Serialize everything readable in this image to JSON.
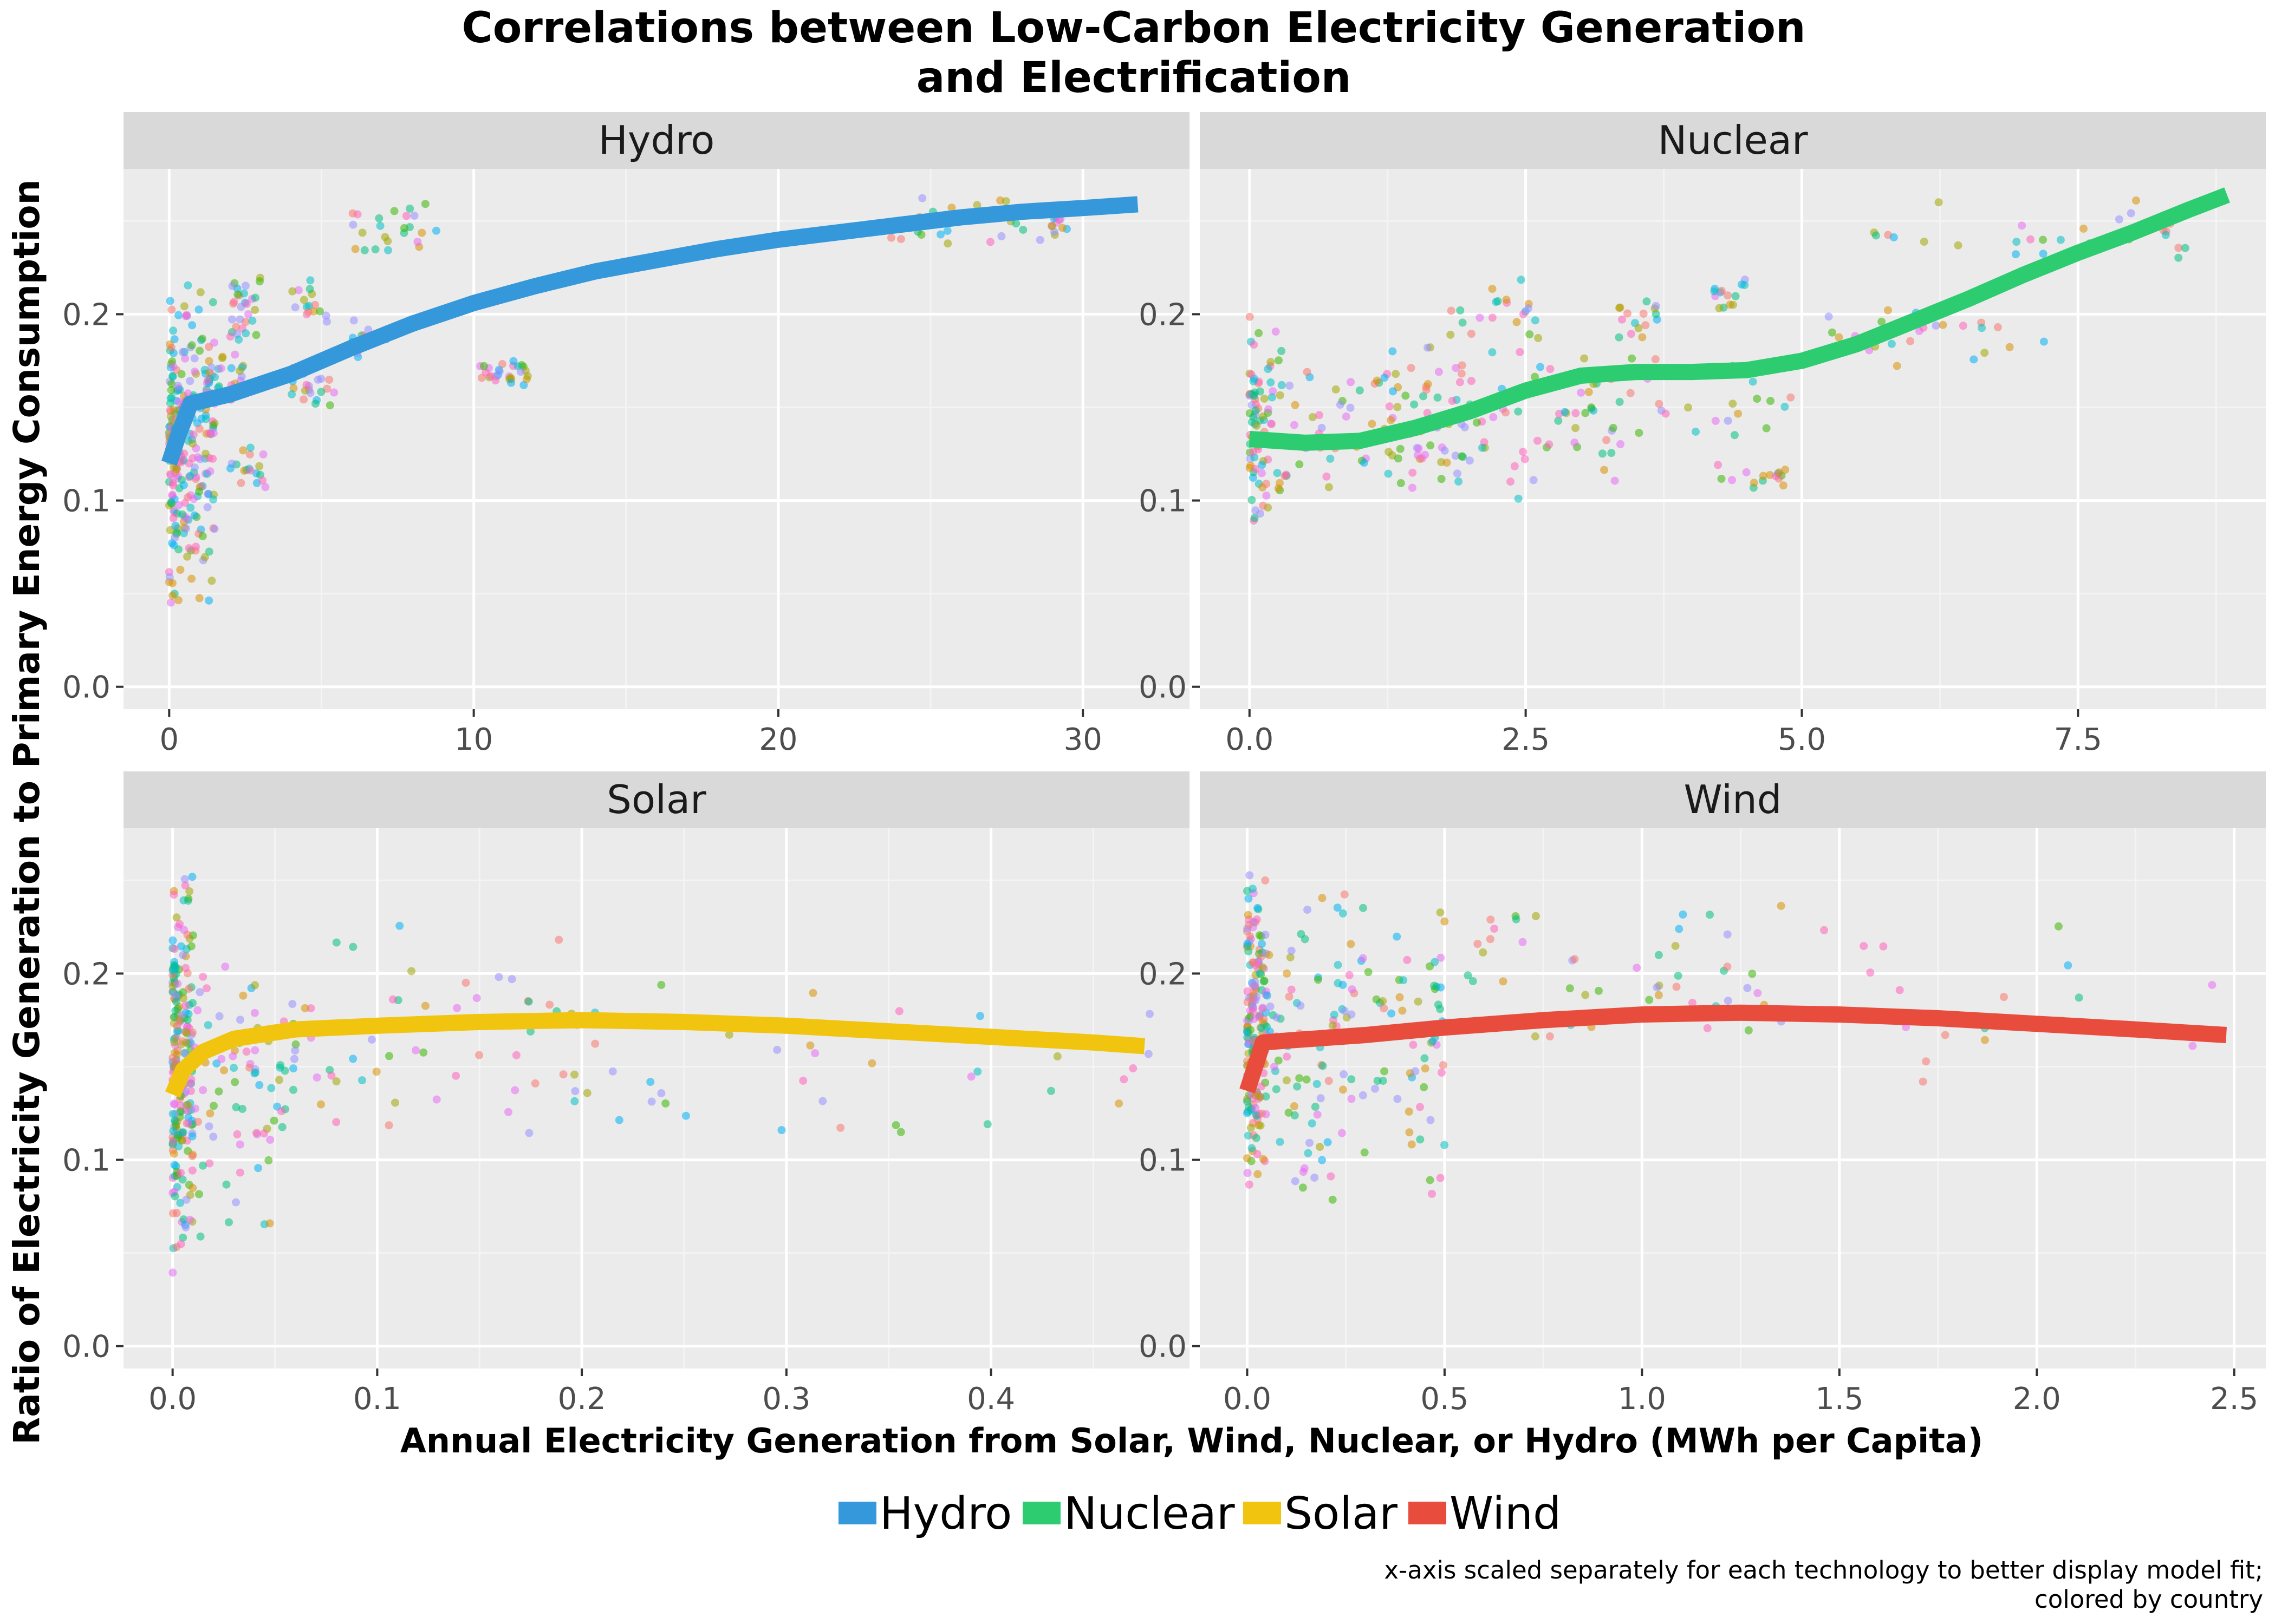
{
  "chart_data": {
    "type": "scatter",
    "title_line1": "Correlations between Low-Carbon Electricity Generation",
    "title_line2": "and Electrification",
    "xlabel": "Annual Electricity Generation from Solar, Wind, Nuclear, or Hydro (MWh per Capita)",
    "ylabel": "Ratio of Electricity Generation to Primary Energy Consumption",
    "caption_line1": "x-axis scaled separately for each technology to better display model fit;",
    "caption_line2": "colored by country",
    "grid": true,
    "legend_position": "bottom",
    "legend": [
      {
        "name": "Hydro",
        "color": "#3498db"
      },
      {
        "name": "Nuclear",
        "color": "#2ecc71"
      },
      {
        "name": "Solar",
        "color": "#f1c40f"
      },
      {
        "name": "Wind",
        "color": "#e74c3c"
      }
    ],
    "point_palette": [
      "#f8766d",
      "#d89000",
      "#a3a500",
      "#39b600",
      "#00bf7d",
      "#00bfc4",
      "#00b0f6",
      "#9590ff",
      "#e76bf3",
      "#ff62bc"
    ],
    "panels": [
      {
        "name": "Hydro",
        "xlim": [
          -1.5,
          33.5
        ],
        "ylim": [
          -0.012,
          0.278
        ],
        "xticks": [
          0,
          10,
          20,
          30
        ],
        "xtick_labels": [
          "0",
          "10",
          "20",
          "30"
        ],
        "yticks": [
          0.0,
          0.1,
          0.2
        ],
        "ytick_labels": [
          "0.0",
          "0.1",
          "0.2"
        ],
        "fit_color": "#3498db",
        "fit": [
          [
            0.0,
            0.12
          ],
          [
            0.3,
            0.135
          ],
          [
            0.7,
            0.152
          ],
          [
            2,
            0.157
          ],
          [
            4,
            0.168
          ],
          [
            6,
            0.182
          ],
          [
            8,
            0.195
          ],
          [
            10,
            0.206
          ],
          [
            12,
            0.215
          ],
          [
            14,
            0.223
          ],
          [
            16,
            0.229
          ],
          [
            18,
            0.235
          ],
          [
            20,
            0.24
          ],
          [
            22,
            0.244
          ],
          [
            24,
            0.248
          ],
          [
            26,
            0.252
          ],
          [
            28,
            0.255
          ],
          [
            30,
            0.257
          ],
          [
            31.8,
            0.259
          ]
        ],
        "clusters": [
          {
            "x": [
              0.0,
              1.5
            ],
            "y": [
              0.04,
              0.22
            ],
            "n": 260
          },
          {
            "x": [
              1.2,
              2.5
            ],
            "y": [
              0.15,
              0.18
            ],
            "n": 35
          },
          {
            "x": [
              2.0,
              3.0
            ],
            "y": [
              0.18,
              0.225
            ],
            "n": 30
          },
          {
            "x": [
              2.0,
              3.2
            ],
            "y": [
              0.1,
              0.13
            ],
            "n": 18
          },
          {
            "x": [
              4.0,
              5.5
            ],
            "y": [
              0.145,
              0.175
            ],
            "n": 20
          },
          {
            "x": [
              4.0,
              5.2
            ],
            "y": [
              0.19,
              0.22
            ],
            "n": 16
          },
          {
            "x": [
              6.0,
              7.2
            ],
            "y": [
              0.175,
              0.198
            ],
            "n": 14
          },
          {
            "x": [
              6.0,
              8.8
            ],
            "y": [
              0.23,
              0.262
            ],
            "n": 24
          },
          {
            "x": [
              10.2,
              11.8
            ],
            "y": [
              0.16,
              0.176
            ],
            "n": 28
          },
          {
            "x": [
              23.0,
              29.5
            ],
            "y": [
              0.235,
              0.265
            ],
            "n": 40
          }
        ]
      },
      {
        "name": "Nuclear",
        "xlim": [
          -0.45,
          9.2
        ],
        "ylim": [
          -0.012,
          0.278
        ],
        "xticks": [
          0.0,
          2.5,
          5.0,
          7.5
        ],
        "xtick_labels": [
          "0.0",
          "2.5",
          "5.0",
          "7.5"
        ],
        "yticks": [
          0.0,
          0.1,
          0.2
        ],
        "ytick_labels": [
          "0.0",
          "0.1",
          "0.2"
        ],
        "fit_color": "#2ecc71",
        "fit": [
          [
            0.0,
            0.133
          ],
          [
            0.5,
            0.131
          ],
          [
            1.0,
            0.132
          ],
          [
            1.5,
            0.139
          ],
          [
            2.0,
            0.148
          ],
          [
            2.5,
            0.159
          ],
          [
            3.0,
            0.167
          ],
          [
            3.5,
            0.169
          ],
          [
            4.0,
            0.169
          ],
          [
            4.5,
            0.17
          ],
          [
            5.0,
            0.175
          ],
          [
            5.5,
            0.184
          ],
          [
            6.0,
            0.196
          ],
          [
            6.5,
            0.208
          ],
          [
            7.0,
            0.221
          ],
          [
            7.5,
            0.233
          ],
          [
            8.0,
            0.244
          ],
          [
            8.5,
            0.256
          ],
          [
            8.85,
            0.264
          ]
        ],
        "clusters": [
          {
            "x": [
              0.0,
              0.3
            ],
            "y": [
              0.078,
              0.2
            ],
            "n": 90
          },
          {
            "x": [
              0.3,
              2.0
            ],
            "y": [
              0.1,
              0.18
            ],
            "n": 70
          },
          {
            "x": [
              1.0,
              3.5
            ],
            "y": [
              0.1,
              0.19
            ],
            "n": 90
          },
          {
            "x": [
              1.8,
              2.6
            ],
            "y": [
              0.18,
              0.23
            ],
            "n": 20
          },
          {
            "x": [
              3.3,
              3.9
            ],
            "y": [
              0.185,
              0.22
            ],
            "n": 16
          },
          {
            "x": [
              4.2,
              4.5
            ],
            "y": [
              0.2,
              0.222
            ],
            "n": 14
          },
          {
            "x": [
              4.2,
              4.9
            ],
            "y": [
              0.105,
              0.12
            ],
            "n": 16
          },
          {
            "x": [
              3.0,
              5.0
            ],
            "y": [
              0.13,
              0.18
            ],
            "n": 25
          },
          {
            "x": [
              5.2,
              7.2
            ],
            "y": [
              0.17,
              0.21
            ],
            "n": 28
          },
          {
            "x": [
              5.6,
              8.6
            ],
            "y": [
              0.22,
              0.262
            ],
            "n": 28
          }
        ]
      },
      {
        "name": "Solar",
        "xlim": [
          -0.024,
          0.497
        ],
        "ylim": [
          -0.012,
          0.278
        ],
        "xticks": [
          0.0,
          0.1,
          0.2,
          0.3,
          0.4
        ],
        "xtick_labels": [
          "0.0",
          "0.1",
          "0.2",
          "0.3",
          "0.4"
        ],
        "yticks": [
          0.0,
          0.1,
          0.2
        ],
        "ytick_labels": [
          "0.0",
          "0.1",
          "0.2"
        ],
        "fit_color": "#f1c40f",
        "fit": [
          [
            0.0,
            0.135
          ],
          [
            0.005,
            0.148
          ],
          [
            0.015,
            0.158
          ],
          [
            0.03,
            0.165
          ],
          [
            0.06,
            0.17
          ],
          [
            0.1,
            0.172
          ],
          [
            0.15,
            0.174
          ],
          [
            0.2,
            0.175
          ],
          [
            0.25,
            0.174
          ],
          [
            0.3,
            0.172
          ],
          [
            0.35,
            0.169
          ],
          [
            0.4,
            0.166
          ],
          [
            0.45,
            0.163
          ],
          [
            0.475,
            0.161
          ]
        ],
        "clusters": [
          {
            "x": [
              0.0,
              0.01
            ],
            "y": [
              0.03,
              0.265
            ],
            "n": 220
          },
          {
            "x": [
              0.005,
              0.06
            ],
            "y": [
              0.05,
              0.22
            ],
            "n": 80
          },
          {
            "x": [
              0.04,
              0.2
            ],
            "y": [
              0.11,
              0.23
            ],
            "n": 60
          },
          {
            "x": [
              0.2,
              0.48
            ],
            "y": [
              0.1,
              0.2
            ],
            "n": 35
          }
        ]
      },
      {
        "name": "Wind",
        "xlim": [
          -0.12,
          2.58
        ],
        "ylim": [
          -0.012,
          0.278
        ],
        "xticks": [
          0.0,
          0.5,
          1.0,
          1.5,
          2.0,
          2.5
        ],
        "xtick_labels": [
          "0.0",
          "0.5",
          "1.0",
          "1.5",
          "2.0",
          "2.5"
        ],
        "yticks": [
          0.0,
          0.1,
          0.2
        ],
        "ytick_labels": [
          "0.0",
          "0.1",
          "0.2"
        ],
        "fit_color": "#e74c3c",
        "fit": [
          [
            0.0,
            0.137
          ],
          [
            0.02,
            0.15
          ],
          [
            0.04,
            0.163
          ],
          [
            0.1,
            0.164
          ],
          [
            0.3,
            0.167
          ],
          [
            0.5,
            0.171
          ],
          [
            0.75,
            0.175
          ],
          [
            1.0,
            0.178
          ],
          [
            1.25,
            0.179
          ],
          [
            1.5,
            0.178
          ],
          [
            1.75,
            0.176
          ],
          [
            2.0,
            0.173
          ],
          [
            2.25,
            0.17
          ],
          [
            2.48,
            0.167
          ]
        ],
        "clusters": [
          {
            "x": [
              0.0,
              0.05
            ],
            "y": [
              0.075,
              0.26
            ],
            "n": 190
          },
          {
            "x": [
              0.03,
              0.5
            ],
            "y": [
              0.07,
              0.26
            ],
            "n": 150
          },
          {
            "x": [
              0.5,
              1.3
            ],
            "y": [
              0.15,
              0.26
            ],
            "n": 45
          },
          {
            "x": [
              1.3,
              2.5
            ],
            "y": [
              0.14,
              0.26
            ],
            "n": 20
          }
        ]
      }
    ]
  }
}
